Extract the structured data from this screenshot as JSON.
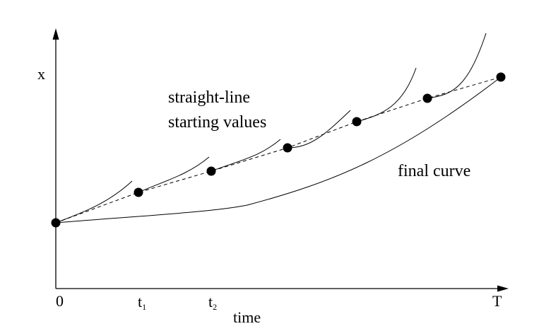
{
  "figure": {
    "y_axis_label": "x",
    "x_axis_label": "time",
    "tick_labels": {
      "zero": "0",
      "t1_base": "t",
      "t1_sub": "1",
      "t2_base": "t",
      "t2_sub": "2",
      "end": "T"
    },
    "annotations": {
      "straight_line_1": "straight-line",
      "straight_line_2": "starting values",
      "final_curve": "final curve"
    }
  },
  "colors": {
    "ink": "#000000",
    "background": "#ffffff"
  }
}
